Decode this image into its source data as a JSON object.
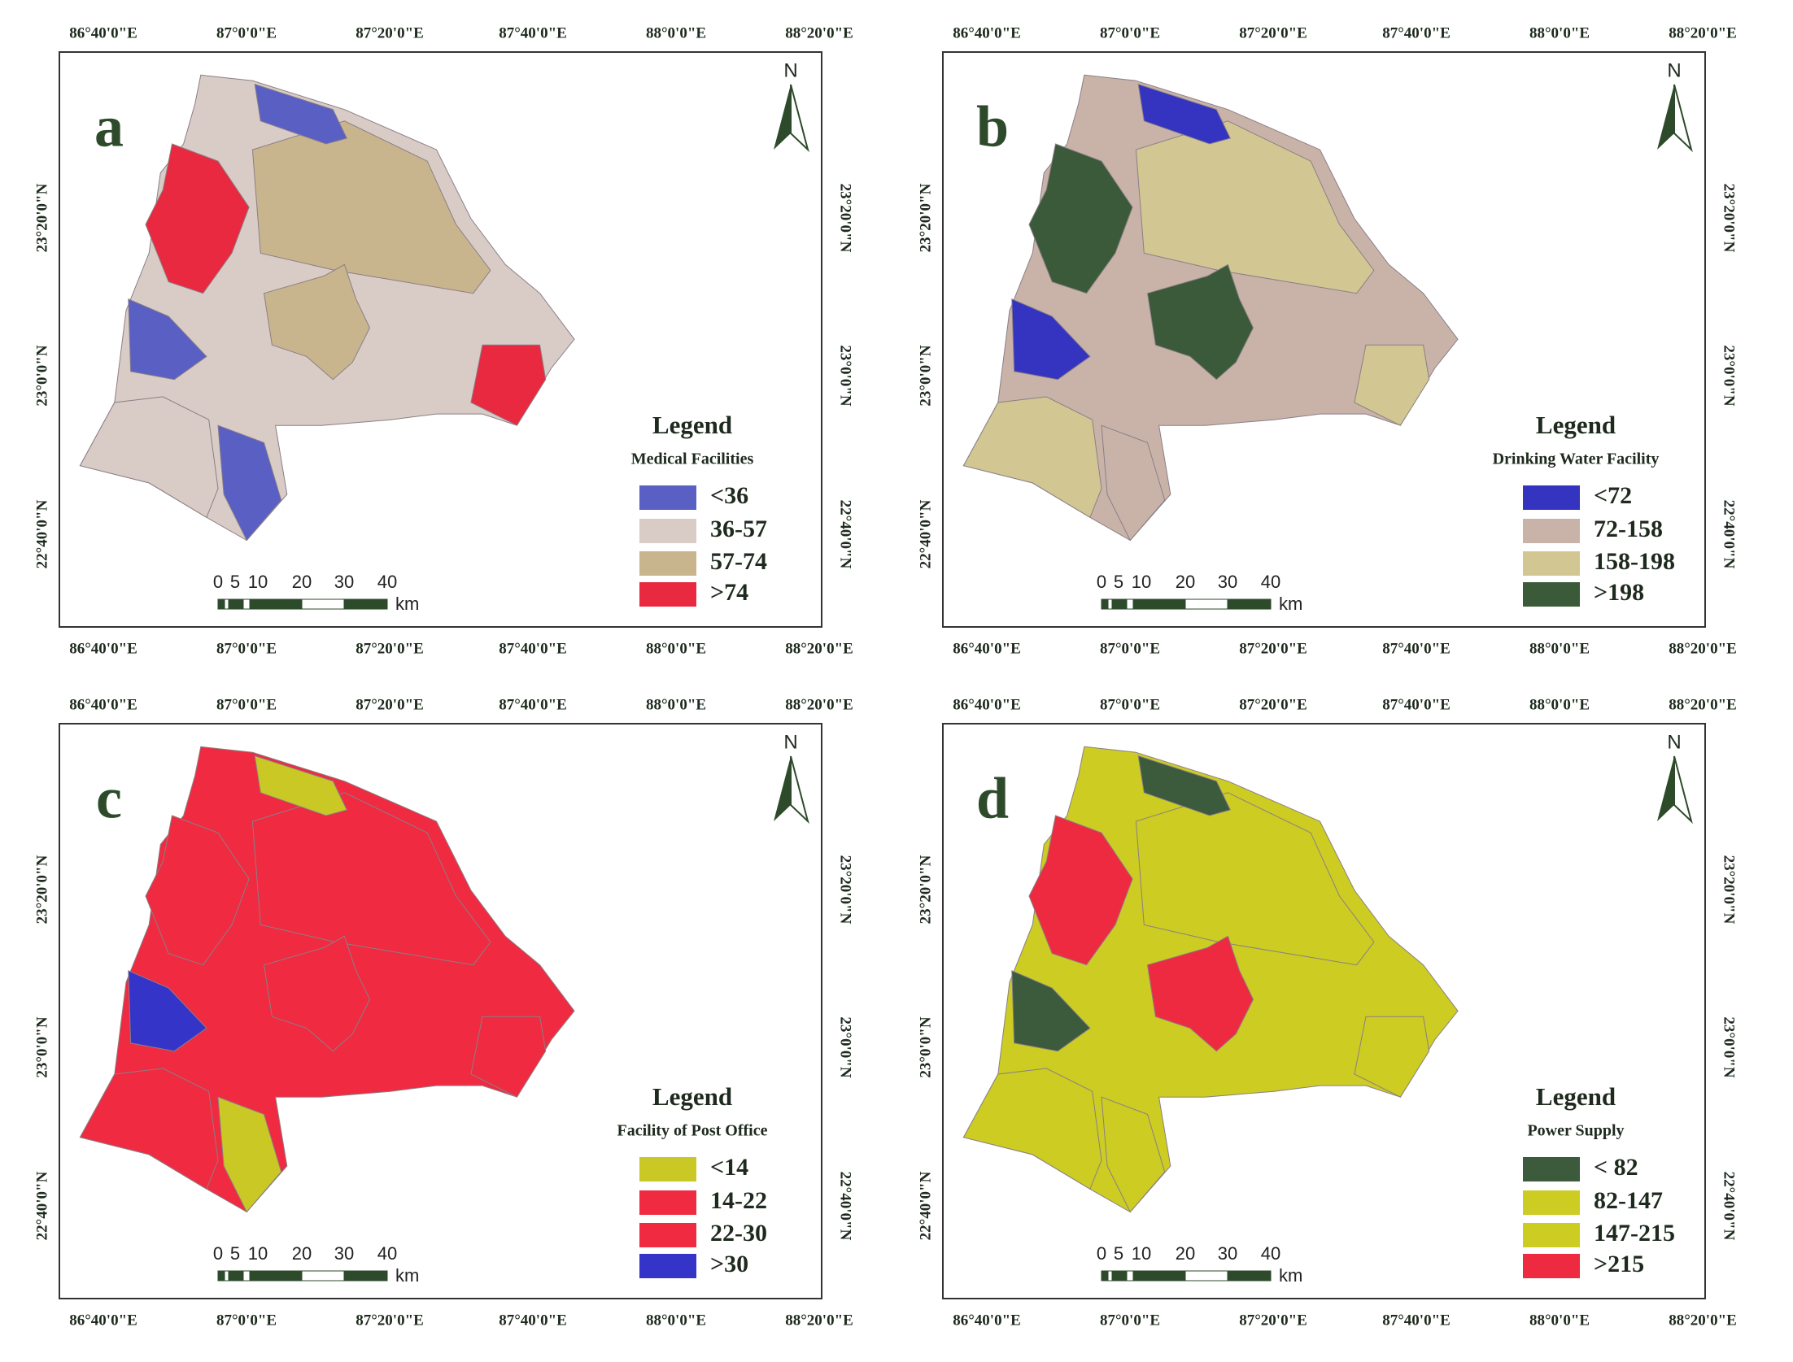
{
  "panels": [
    {
      "letter": "a",
      "legend_heading": "Legend",
      "legend_title": "Medical Facilities",
      "legend": [
        {
          "label": "<36",
          "color": "#5a5fc4"
        },
        {
          "label": "36-57",
          "color": "#d9ccc6"
        },
        {
          "label": "57-74",
          "color": "#c8b58e"
        },
        {
          "label": ">74",
          "color": "#e8293f"
        }
      ]
    },
    {
      "letter": "b",
      "legend_heading": "Legend",
      "legend_title": "Drinking Water Facility",
      "legend": [
        {
          "label": "<72",
          "color": "#3434c0"
        },
        {
          "label": "72-158",
          "color": "#c9b3a8"
        },
        {
          "label": "158-198",
          "color": "#d2c792"
        },
        {
          "label": ">198",
          "color": "#3a5a3a"
        }
      ]
    },
    {
      "letter": "c",
      "legend_heading": "Legend",
      "legend_title": "Facility of Post Office",
      "legend": [
        {
          "label": "<14",
          "color": "#c9c824"
        },
        {
          "label": "14-22",
          "color": "#f02a40"
        },
        {
          "label": "22-30",
          "color": "#f02a40"
        },
        {
          "label": ">30",
          "color": "#3434c8"
        }
      ]
    },
    {
      "letter": "d",
      "legend_heading": "Legend",
      "legend_title": "Power Supply",
      "legend": [
        {
          "label": "< 82",
          "color": "#3c5a3c"
        },
        {
          "label": "82-147",
          "color": "#cccc22"
        },
        {
          "label": "147-215",
          "color": "#cccc22"
        },
        {
          "label": ">215",
          "color": "#ee2a40"
        }
      ]
    }
  ],
  "x_labels": [
    "86°40'0\"E",
    "87°0'0\"E",
    "87°20'0\"E",
    "87°40'0\"E",
    "88°0'0\"E",
    "88°20'0\"E"
  ],
  "y_labels": [
    "23°20'0\"N",
    "23°0'0\"N",
    "22°40'0\"N"
  ],
  "scale_labels": [
    "0",
    "5",
    "10",
    "20",
    "30",
    "40"
  ],
  "scale_unit": "km",
  "north": "N"
}
